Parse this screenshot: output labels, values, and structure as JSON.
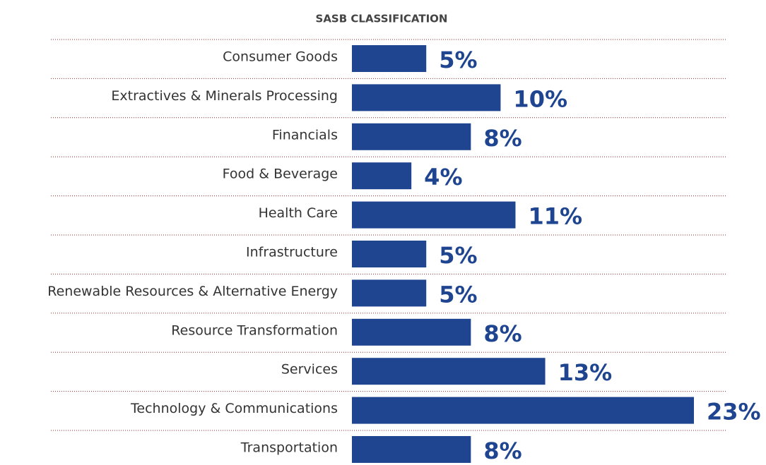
{
  "chart_data": {
    "type": "bar",
    "orientation": "horizontal",
    "title": "SASB CLASSIFICATION",
    "categories": [
      "Consumer Goods",
      "Extractives & Minerals Processing",
      "Financials",
      "Food & Beverage",
      "Health Care",
      "Infrastructure",
      "Renewable Resources & Alternative Energy",
      "Resource Transformation",
      "Services",
      "Technology & Communications",
      "Transportation"
    ],
    "values": [
      5,
      10,
      8,
      4,
      11,
      5,
      5,
      8,
      13,
      23,
      8
    ],
    "value_labels": [
      "5%",
      "10%",
      "8%",
      "4%",
      "11%",
      "5%",
      "5%",
      "8%",
      "13%",
      "23%",
      "8%"
    ],
    "color": "#1f4590"
  }
}
